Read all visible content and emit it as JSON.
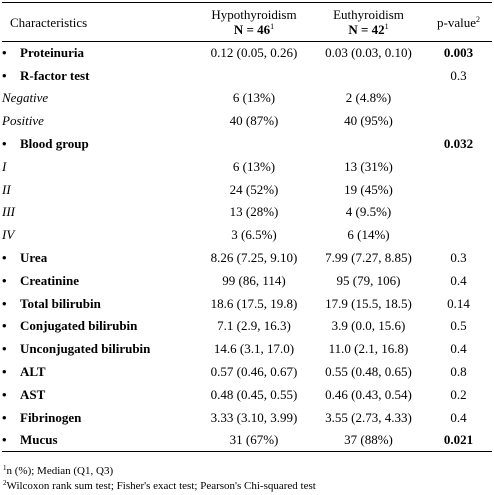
{
  "header": {
    "characteristics": "Characteristics",
    "hypo_label": "Hypothyroidism",
    "hypo_n": "N = 46",
    "hypo_n_sup": "1",
    "eu_label": "Euthyroidism",
    "eu_n": "N = 42",
    "eu_n_sup": "1",
    "p_label": "p-value",
    "p_sup": "2"
  },
  "rows": [
    {
      "label": "Proteinuria",
      "kind": "var",
      "hypo": "0.12 (0.05, 0.26)",
      "eu": "0.03 (0.03, 0.10)",
      "p": "0.003",
      "p_bold": true
    },
    {
      "label": "R-factor test",
      "kind": "var",
      "hypo": "",
      "eu": "",
      "p": "0.3",
      "p_bold": false
    },
    {
      "label": "Negative",
      "kind": "level",
      "hypo": "6 (13%)",
      "eu": "2 (4.8%)",
      "p": "",
      "p_bold": false
    },
    {
      "label": "Positive",
      "kind": "level",
      "hypo": "40 (87%)",
      "eu": "40 (95%)",
      "p": "",
      "p_bold": false
    },
    {
      "label": "Blood group",
      "kind": "var",
      "hypo": "",
      "eu": "",
      "p": "0.032",
      "p_bold": true
    },
    {
      "label": "I",
      "kind": "level",
      "hypo": "6 (13%)",
      "eu": "13 (31%)",
      "p": "",
      "p_bold": false
    },
    {
      "label": "II",
      "kind": "level",
      "hypo": "24 (52%)",
      "eu": "19 (45%)",
      "p": "",
      "p_bold": false
    },
    {
      "label": "III",
      "kind": "level",
      "hypo": "13 (28%)",
      "eu": "4 (9.5%)",
      "p": "",
      "p_bold": false
    },
    {
      "label": "IV",
      "kind": "level",
      "hypo": "3 (6.5%)",
      "eu": "6 (14%)",
      "p": "",
      "p_bold": false
    },
    {
      "label": "Urea",
      "kind": "var",
      "hypo": "8.26 (7.25, 9.10)",
      "eu": "7.99 (7.27, 8.85)",
      "p": "0.3",
      "p_bold": false
    },
    {
      "label": "Creatinine",
      "kind": "var",
      "hypo": "99 (86, 114)",
      "eu": "95 (79, 106)",
      "p": "0.4",
      "p_bold": false
    },
    {
      "label": "Total bilirubin",
      "kind": "var",
      "hypo": "18.6 (17.5, 19.8)",
      "eu": "17.9 (15.5, 18.5)",
      "p": "0.14",
      "p_bold": false
    },
    {
      "label": "Conjugated bilirubin",
      "kind": "var",
      "hypo": "7.1 (2.9, 16.3)",
      "eu": "3.9 (0.0, 15.6)",
      "p": "0.5",
      "p_bold": false
    },
    {
      "label": "Unconjugated bilirubin",
      "kind": "var",
      "hypo": "14.6 (3.1, 17.0)",
      "eu": "11.0 (2.1, 16.8)",
      "p": "0.4",
      "p_bold": false
    },
    {
      "label": "ALT",
      "kind": "var",
      "hypo": "0.57 (0.46, 0.67)",
      "eu": "0.55 (0.48, 0.65)",
      "p": "0.8",
      "p_bold": false
    },
    {
      "label": "AST",
      "kind": "var",
      "hypo": "0.48 (0.45, 0.55)",
      "eu": "0.46 (0.43, 0.54)",
      "p": "0.2",
      "p_bold": false
    },
    {
      "label": "Fibrinogen",
      "kind": "var",
      "hypo": "3.33 (3.10, 3.99)",
      "eu": "3.55 (2.73, 4.33)",
      "p": "0.4",
      "p_bold": false
    },
    {
      "label": "Mucus",
      "kind": "var",
      "hypo": "31 (67%)",
      "eu": "37 (88%)",
      "p": "0.021",
      "p_bold": true
    }
  ],
  "bullet": "•",
  "footnotes": [
    {
      "sup": "1",
      "text": "n (%); Median (Q1, Q3)"
    },
    {
      "sup": "2",
      "text": "Wilcoxon rank sum test; Fisher's exact test; Pearson's Chi-squared test"
    }
  ]
}
